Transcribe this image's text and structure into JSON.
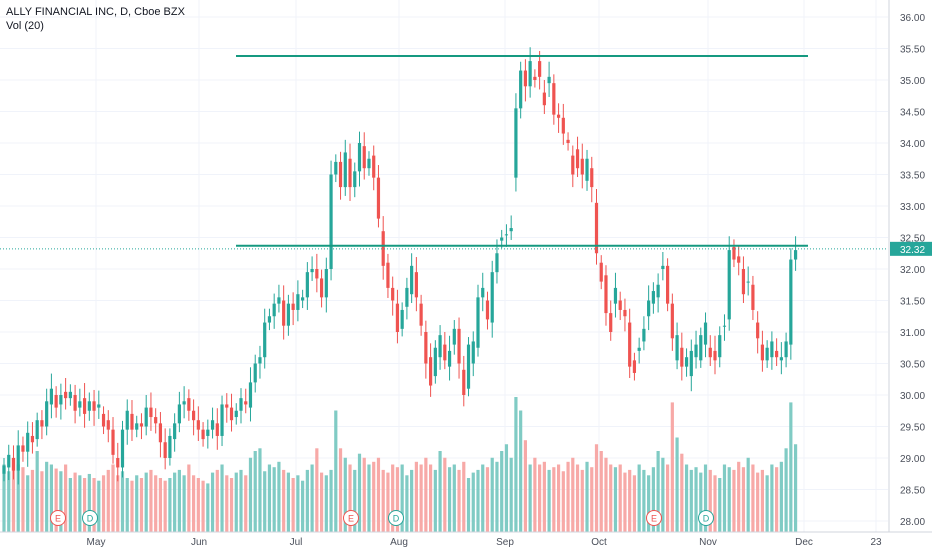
{
  "legend": {
    "symbol_line": "ALLY FINANCIAL INC, D, Cboe BZX",
    "volume_line": "Vol (20)"
  },
  "colors": {
    "up": "#26a69a",
    "down": "#ef5350",
    "up_volume": "#80cbc4",
    "down_volume": "#f7a9a7",
    "level_line": "#159980",
    "last_price_badge": "#26a69a",
    "grid": "#f0f3fa",
    "axis_text": "#4a4f5a",
    "event_earnings": "#ef5350",
    "event_dividend": "#26a69a"
  },
  "chart_data": {
    "type": "candlestick",
    "title": "ALLY FINANCIAL INC, D, Cboe BZX",
    "y_ticks": [
      "36.00",
      "35.50",
      "35.00",
      "34.50",
      "34.00",
      "33.50",
      "33.00",
      "32.50",
      "32.00",
      "31.50",
      "31.00",
      "30.50",
      "30.00",
      "29.50",
      "29.00",
      "28.50",
      "28.00"
    ],
    "ylim": [
      27.9,
      36.15
    ],
    "x_ticks": [
      "May",
      "Jun",
      "Jul",
      "Aug",
      "Sep",
      "Oct",
      "Nov",
      "Dec",
      "23"
    ],
    "last_price": "32.32",
    "last_price_value": 32.32,
    "horizontal_levels": [
      35.38,
      32.37
    ],
    "events": [
      {
        "label": "E",
        "type": "earnings"
      },
      {
        "label": "D",
        "type": "dividend"
      },
      {
        "label": "E",
        "type": "earnings"
      },
      {
        "label": "D",
        "type": "dividend"
      },
      {
        "label": "E",
        "type": "earnings"
      },
      {
        "label": "D",
        "type": "dividend"
      }
    ],
    "candles": [
      [
        28.75,
        28.88
      ],
      [
        28.85,
        29.05
      ],
      [
        29.0,
        28.8
      ],
      [
        28.8,
        29.2
      ],
      [
        29.2,
        29.1
      ],
      [
        29.1,
        29.4
      ],
      [
        29.35,
        29.25
      ],
      [
        29.3,
        29.6
      ],
      [
        29.6,
        29.5
      ],
      [
        29.5,
        29.9
      ],
      [
        29.85,
        30.1
      ],
      [
        30.0,
        29.8
      ],
      [
        29.85,
        30.0
      ],
      [
        30.05,
        29.95
      ],
      [
        29.95,
        30.05
      ],
      [
        30.0,
        29.75
      ],
      [
        29.8,
        29.9
      ],
      [
        29.95,
        29.7
      ],
      [
        29.75,
        29.9
      ],
      [
        29.9,
        29.75
      ],
      [
        29.8,
        29.85
      ],
      [
        29.7,
        29.5
      ],
      [
        29.6,
        29.45
      ],
      [
        29.45,
        29.05
      ],
      [
        29.0,
        28.85
      ],
      [
        28.85,
        29.45
      ],
      [
        29.45,
        29.75
      ],
      [
        29.7,
        29.45
      ],
      [
        29.45,
        29.55
      ],
      [
        29.55,
        29.5
      ],
      [
        29.5,
        29.8
      ],
      [
        29.8,
        29.65
      ],
      [
        29.65,
        29.55
      ],
      [
        29.55,
        29.25
      ],
      [
        29.25,
        29.0
      ],
      [
        29.0,
        29.35
      ],
      [
        29.3,
        29.55
      ],
      [
        29.55,
        29.85
      ],
      [
        29.85,
        29.9
      ],
      [
        29.95,
        29.75
      ],
      [
        29.75,
        29.6
      ],
      [
        29.6,
        29.45
      ],
      [
        29.45,
        29.3
      ],
      [
        29.35,
        29.45
      ],
      [
        29.45,
        29.6
      ],
      [
        29.55,
        29.35
      ],
      [
        29.35,
        29.85
      ],
      [
        29.85,
        29.8
      ],
      [
        29.8,
        29.6
      ],
      [
        29.65,
        29.75
      ],
      [
        29.75,
        29.95
      ],
      [
        29.9,
        29.85
      ],
      [
        29.8,
        30.2
      ],
      [
        30.2,
        30.5
      ],
      [
        30.5,
        30.6
      ],
      [
        30.6,
        31.15
      ],
      [
        31.15,
        31.25
      ],
      [
        31.25,
        31.45
      ],
      [
        31.45,
        31.55
      ],
      [
        31.5,
        31.1
      ],
      [
        31.1,
        31.45
      ],
      [
        31.45,
        31.35
      ],
      [
        31.35,
        31.6
      ],
      [
        31.5,
        31.55
      ],
      [
        31.55,
        31.95
      ],
      [
        31.95,
        32.0
      ],
      [
        32.0,
        31.85
      ],
      [
        31.85,
        31.55
      ],
      [
        31.55,
        32.0
      ],
      [
        32.0,
        33.5
      ],
      [
        33.5,
        33.7
      ],
      [
        33.7,
        33.3
      ],
      [
        33.3,
        33.85
      ],
      [
        33.75,
        33.3
      ],
      [
        33.3,
        33.55
      ],
      [
        33.55,
        34.0
      ],
      [
        33.95,
        33.6
      ],
      [
        33.6,
        33.75
      ],
      [
        33.8,
        33.45
      ],
      [
        33.45,
        32.8
      ],
      [
        32.6,
        32.05
      ],
      [
        32.1,
        31.7
      ],
      [
        31.7,
        31.5
      ],
      [
        31.45,
        31.0
      ],
      [
        31.05,
        31.35
      ],
      [
        31.4,
        31.7
      ],
      [
        31.6,
        32.05
      ],
      [
        31.95,
        31.55
      ],
      [
        31.45,
        31.1
      ],
      [
        31.0,
        30.5
      ],
      [
        30.6,
        30.15
      ],
      [
        30.3,
        30.75
      ],
      [
        30.6,
        30.95
      ],
      [
        30.8,
        30.55
      ],
      [
        30.45,
        30.7
      ],
      [
        30.8,
        31.05
      ],
      [
        31.05,
        30.5
      ],
      [
        30.4,
        30.0
      ],
      [
        30.1,
        30.8
      ],
      [
        30.5,
        30.85
      ],
      [
        30.75,
        31.55
      ],
      [
        31.55,
        31.7
      ],
      [
        31.5,
        31.2
      ],
      [
        31.15,
        31.95
      ],
      [
        31.95,
        32.25
      ],
      [
        32.45,
        32.5
      ],
      [
        32.55,
        32.55
      ],
      [
        32.6,
        32.65
      ],
      [
        33.45,
        34.55
      ],
      [
        34.55,
        35.15
      ],
      [
        35.15,
        34.9
      ],
      [
        34.9,
        35.3
      ],
      [
        35.05,
        35.0
      ],
      [
        35.3,
        35.05
      ],
      [
        34.8,
        34.6
      ],
      [
        34.95,
        35.05
      ],
      [
        34.95,
        34.45
      ],
      [
        34.45,
        34.4
      ],
      [
        34.4,
        34.15
      ],
      [
        34.05,
        34.0
      ],
      [
        33.8,
        33.5
      ],
      [
        33.9,
        33.6
      ],
      [
        33.75,
        33.5
      ],
      [
        33.4,
        33.75
      ],
      [
        33.6,
        33.3
      ],
      [
        33.05,
        32.25
      ],
      [
        32.1,
        31.8
      ],
      [
        31.9,
        31.3
      ],
      [
        31.3,
        31.0
      ],
      [
        31.45,
        31.7
      ],
      [
        31.5,
        31.35
      ],
      [
        31.35,
        31.25
      ],
      [
        31.15,
        30.45
      ],
      [
        30.55,
        30.35
      ],
      [
        30.7,
        30.75
      ],
      [
        30.85,
        31.05
      ],
      [
        31.25,
        31.5
      ],
      [
        31.45,
        31.65
      ],
      [
        31.55,
        31.75
      ],
      [
        32.0,
        32.05
      ],
      [
        32.05,
        31.45
      ],
      [
        31.45,
        30.9
      ],
      [
        30.55,
        30.95
      ],
      [
        30.75,
        30.45
      ],
      [
        30.45,
        30.6
      ],
      [
        30.3,
        30.7
      ],
      [
        30.6,
        30.8
      ],
      [
        30.55,
        30.95
      ],
      [
        30.8,
        31.15
      ],
      [
        30.75,
        30.6
      ],
      [
        30.7,
        30.55
      ],
      [
        30.6,
        30.95
      ],
      [
        31.1,
        31.1
      ],
      [
        31.2,
        32.3
      ],
      [
        32.35,
        32.15
      ],
      [
        32.2,
        32.1
      ],
      [
        32.0,
        31.6
      ],
      [
        31.8,
        31.8
      ],
      [
        31.75,
        31.35
      ],
      [
        31.15,
        30.9
      ],
      [
        30.8,
        30.55
      ],
      [
        30.55,
        30.75
      ],
      [
        30.6,
        30.85
      ],
      [
        30.7,
        30.6
      ],
      [
        30.55,
        30.6
      ],
      [
        30.6,
        30.85
      ],
      [
        30.8,
        32.15
      ],
      [
        32.15,
        32.3
      ]
    ],
    "volumes": [
      0.5,
      0.45,
      0.55,
      0.5,
      0.48,
      0.42,
      0.46,
      0.6,
      0.45,
      0.52,
      0.5,
      0.47,
      0.45,
      0.5,
      0.4,
      0.44,
      0.42,
      0.4,
      0.43,
      0.4,
      0.38,
      0.42,
      0.46,
      0.5,
      0.42,
      0.45,
      0.4,
      0.38,
      0.42,
      0.4,
      0.44,
      0.46,
      0.42,
      0.4,
      0.38,
      0.4,
      0.44,
      0.46,
      0.42,
      0.5,
      0.42,
      0.4,
      0.38,
      0.36,
      0.44,
      0.46,
      0.5,
      0.42,
      0.4,
      0.44,
      0.46,
      0.42,
      0.55,
      0.6,
      0.62,
      0.45,
      0.5,
      0.48,
      0.52,
      0.46,
      0.44,
      0.4,
      0.42,
      0.38,
      0.46,
      0.5,
      0.62,
      0.44,
      0.42,
      0.46,
      0.9,
      0.62,
      0.55,
      0.5,
      0.46,
      0.58,
      0.55,
      0.5,
      0.52,
      0.55,
      0.46,
      0.44,
      0.5,
      0.48,
      0.5,
      0.42,
      0.46,
      0.52,
      0.5,
      0.55,
      0.5,
      0.46,
      0.6,
      0.55,
      0.48,
      0.5,
      0.46,
      0.52,
      0.4,
      0.44,
      0.46,
      0.5,
      0.48,
      0.55,
      0.52,
      0.6,
      0.65,
      0.55,
      1.0,
      0.9,
      0.68,
      0.5,
      0.55,
      0.5,
      0.52,
      0.46,
      0.48,
      0.5,
      0.45,
      0.52,
      0.55,
      0.5,
      0.46,
      0.52,
      0.48,
      0.65,
      0.6,
      0.55,
      0.5,
      0.48,
      0.5,
      0.44,
      0.46,
      0.42,
      0.5,
      0.46,
      0.42,
      0.48,
      0.6,
      0.55,
      0.5,
      0.96,
      0.7,
      0.58,
      0.5,
      0.46,
      0.48,
      0.44,
      0.5,
      0.46,
      0.42,
      0.4,
      0.5,
      0.48,
      0.46,
      0.52,
      0.48,
      0.55,
      0.5,
      0.44,
      0.46,
      0.42,
      0.5,
      0.48,
      0.52,
      0.62,
      0.96,
      0.65
    ]
  }
}
